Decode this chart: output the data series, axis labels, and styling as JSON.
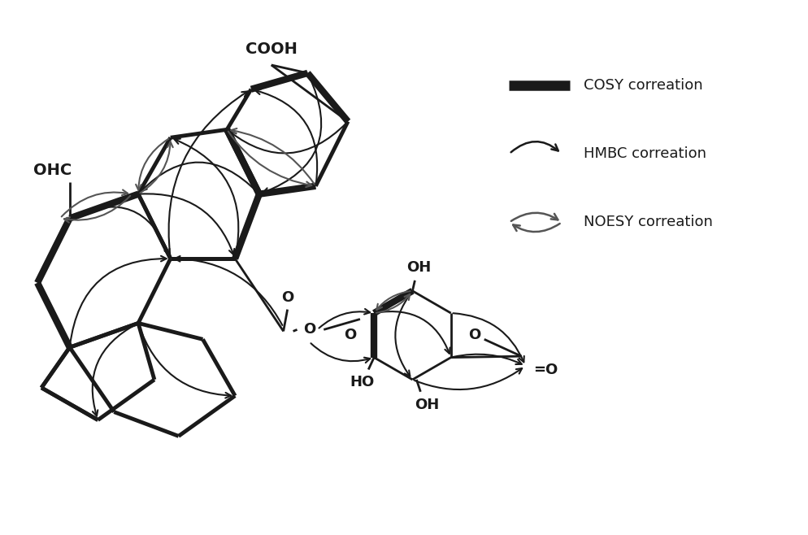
{
  "title": "",
  "background_color": "#ffffff",
  "cosy_color": "#1a1a1a",
  "hmbc_color": "#1a1a1a",
  "noesy_color": "#555555",
  "bond_color": "#1a1a1a",
  "legend_labels": [
    "COSY correation",
    "HMBC correation",
    "NOESY correation"
  ],
  "figsize": [
    9.95,
    6.58
  ]
}
